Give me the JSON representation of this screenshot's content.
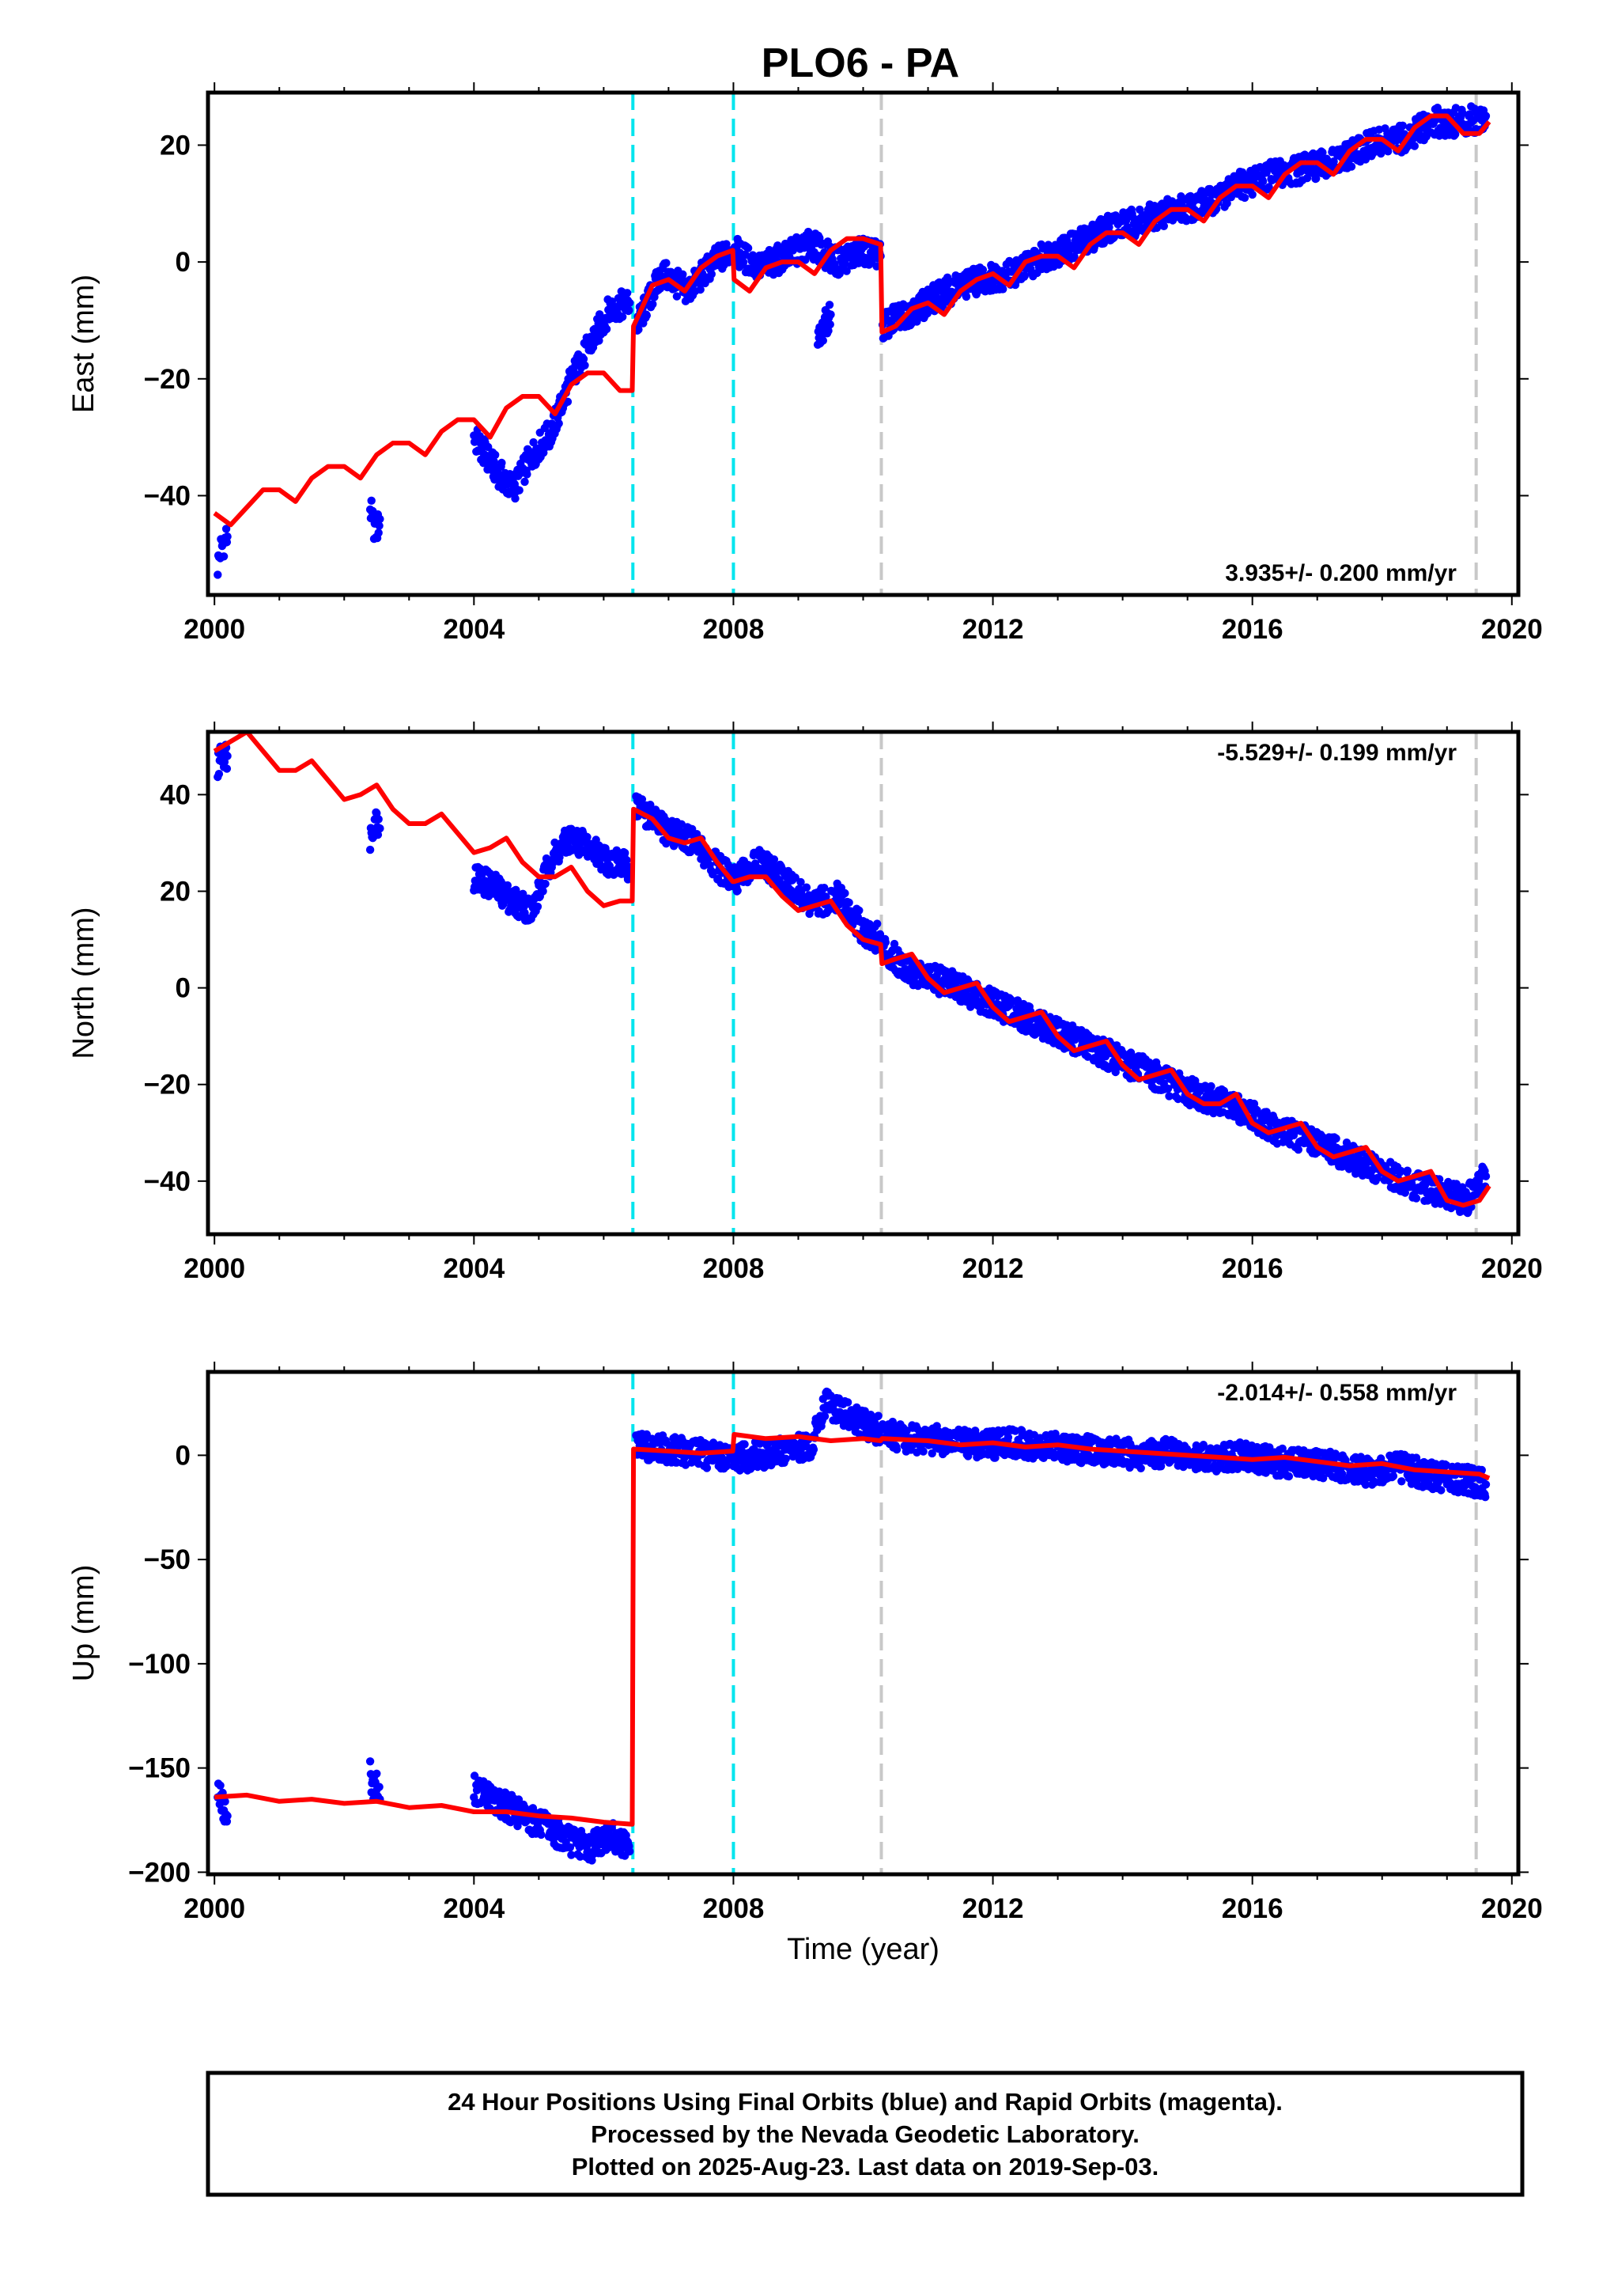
{
  "title": "PLO6 - PA",
  "colors": {
    "data": "#0000ff",
    "model": "#ff0000",
    "equipment_change": "#00e5ee",
    "other_change": "#c8c8c8"
  },
  "footer": {
    "line1": "24 Hour Positions Using Final Orbits (blue) and Rapid Orbits (magenta).",
    "line2": "Processed by the Nevada Geodetic Laboratory.",
    "line3": "Plotted on 2025-Aug-23. Last data on 2019-Sep-03."
  },
  "chart_data": [
    {
      "type": "scatter",
      "component": "East",
      "ylabel": "East (mm)",
      "xlabel": "",
      "xlim": [
        1999.9,
        2020.1
      ],
      "ylim": [
        -57,
        29
      ],
      "xticks": [
        2000,
        2004,
        2008,
        2012,
        2016,
        2020
      ],
      "yticks": [
        20,
        0,
        -20,
        -40
      ],
      "rate_label": "3.935+/- 0.200 mm/yr",
      "rate_position": "bottom-right",
      "offsets_cyan": [
        2006.45,
        2008.0
      ],
      "offsets_gray": [
        2010.28,
        2019.45
      ],
      "data_series": [
        {
          "x": [
            2000.05,
            2000.1,
            2000.2
          ],
          "y": [
            -52,
            -49,
            -47
          ]
        },
        {
          "x": [
            2002.4,
            2002.45,
            2002.5,
            2002.55
          ],
          "y": [
            -42,
            -45,
            -46,
            -44
          ]
        },
        {
          "x": [
            2004.0,
            2004.3,
            2004.6,
            2004.9,
            2005.2,
            2005.5,
            2005.8,
            2006.1,
            2006.4
          ],
          "y": [
            -30,
            -35,
            -39,
            -33,
            -29,
            -20,
            -14,
            -8,
            -7
          ]
        },
        {
          "x": [
            2006.5,
            2006.9,
            2007.3,
            2007.7,
            2008.0,
            2008.4,
            2008.8,
            2009.2,
            2009.6,
            2010.0,
            2010.27
          ],
          "y": [
            -11,
            -2,
            -5,
            0,
            2,
            -1,
            1,
            3,
            0,
            2,
            1
          ]
        },
        {
          "x": [
            2009.3,
            2009.4,
            2009.5
          ],
          "y": [
            -14,
            -11,
            -9
          ]
        },
        {
          "x": [
            2010.3,
            2010.8,
            2011.3,
            2011.8,
            2012.3,
            2012.8,
            2013.3,
            2013.8,
            2014.3,
            2014.8,
            2015.3,
            2015.8,
            2016.3,
            2016.8,
            2017.3,
            2017.8,
            2018.3,
            2018.8,
            2019.3,
            2019.6
          ],
          "y": [
            -11,
            -8,
            -5,
            -3,
            -2,
            1,
            3,
            6,
            7,
            9,
            10,
            13,
            15,
            16,
            17,
            20,
            21,
            24,
            24,
            25
          ]
        }
      ],
      "model_series": {
        "x": [
          2000.0,
          2000.25,
          2000.5,
          2000.75,
          2001.0,
          2001.25,
          2001.5,
          2001.75,
          2002.0,
          2002.25,
          2002.5,
          2002.75,
          2003.0,
          2003.25,
          2003.5,
          2003.75,
          2004.0,
          2004.25,
          2004.5,
          2004.75,
          2005.0,
          2005.25,
          2005.5,
          2005.75,
          2006.0,
          2006.25,
          2006.44,
          2006.46,
          2006.75,
          2007.0,
          2007.25,
          2007.5,
          2007.75,
          2007.99,
          2008.01,
          2008.25,
          2008.5,
          2008.75,
          2009.0,
          2009.25,
          2009.5,
          2009.75,
          2010.0,
          2010.27,
          2010.29,
          2010.5,
          2010.75,
          2011.0,
          2011.25,
          2011.5,
          2011.75,
          2012.0,
          2012.25,
          2012.5,
          2012.75,
          2013.0,
          2013.25,
          2013.5,
          2013.75,
          2014.0,
          2014.25,
          2014.5,
          2014.75,
          2015.0,
          2015.25,
          2015.5,
          2015.75,
          2016.0,
          2016.25,
          2016.5,
          2016.75,
          2017.0,
          2017.25,
          2017.5,
          2017.75,
          2018.0,
          2018.25,
          2018.5,
          2018.75,
          2019.0,
          2019.25,
          2019.5,
          2019.65
        ],
        "y": [
          -43,
          -45,
          -42,
          -39,
          -39,
          -41,
          -37,
          -35,
          -35,
          -37,
          -33,
          -31,
          -31,
          -33,
          -29,
          -27,
          -27,
          -30,
          -25,
          -23,
          -23,
          -26,
          -21,
          -19,
          -19,
          -22,
          -22,
          -11,
          -4,
          -3,
          -5,
          -1,
          1,
          2,
          -3,
          -5,
          -1,
          0,
          0,
          -2,
          2,
          4,
          4,
          3,
          -12,
          -11,
          -8,
          -7,
          -9,
          -5,
          -3,
          -2,
          -4,
          0,
          1,
          1,
          -1,
          3,
          5,
          5,
          3,
          7,
          9,
          9,
          7,
          11,
          13,
          13,
          11,
          15,
          17,
          17,
          15,
          19,
          21,
          21,
          19,
          23,
          25,
          25,
          22,
          22,
          24
        ]
      }
    },
    {
      "type": "scatter",
      "component": "North",
      "ylabel": "North (mm)",
      "xlabel": "",
      "xlim": [
        1999.9,
        2020.1
      ],
      "ylim": [
        -51,
        53
      ],
      "xticks": [
        2000,
        2004,
        2008,
        2012,
        2016,
        2020
      ],
      "yticks": [
        40,
        20,
        0,
        -20,
        -40
      ],
      "rate_label": "-5.529+/- 0.199 mm/yr",
      "rate_position": "top-right",
      "offsets_cyan": [
        2006.45,
        2008.0
      ],
      "offsets_gray": [
        2010.28,
        2019.45
      ],
      "data_series": [
        {
          "x": [
            2000.05,
            2000.1,
            2000.2
          ],
          "y": [
            45,
            49,
            48
          ]
        },
        {
          "x": [
            2002.4,
            2002.45,
            2002.5,
            2002.55
          ],
          "y": [
            31,
            34,
            35,
            33
          ]
        },
        {
          "x": [
            2004.0,
            2004.3,
            2004.6,
            2004.9,
            2005.2,
            2005.5,
            2005.8,
            2006.1,
            2006.4
          ],
          "y": [
            23,
            21,
            18,
            16,
            27,
            31,
            29,
            26,
            25
          ]
        },
        {
          "x": [
            2006.5,
            2006.9,
            2007.3,
            2007.7,
            2008.0,
            2008.4,
            2008.8,
            2009.2,
            2009.6,
            2010.0,
            2010.27
          ],
          "y": [
            38,
            33,
            31,
            26,
            22,
            26,
            22,
            17,
            19,
            12,
            10
          ]
        },
        {
          "x": [
            2010.3,
            2010.8,
            2011.3,
            2011.8,
            2012.3,
            2012.8,
            2013.3,
            2013.8,
            2014.3,
            2014.8,
            2015.3,
            2015.8,
            2016.3,
            2016.8,
            2017.3,
            2017.8,
            2018.3,
            2018.8,
            2019.3,
            2019.6
          ],
          "y": [
            8,
            3,
            1,
            -2,
            -5,
            -8,
            -11,
            -14,
            -17,
            -20,
            -23,
            -25,
            -29,
            -31,
            -34,
            -37,
            -40,
            -42,
            -44,
            -39
          ]
        }
      ],
      "model_series": {
        "x": [
          2000.0,
          2000.25,
          2000.5,
          2000.75,
          2001.0,
          2001.25,
          2001.5,
          2001.75,
          2002.0,
          2002.25,
          2002.5,
          2002.75,
          2003.0,
          2003.25,
          2003.5,
          2003.75,
          2004.0,
          2004.25,
          2004.5,
          2004.75,
          2005.0,
          2005.25,
          2005.5,
          2005.75,
          2006.0,
          2006.25,
          2006.44,
          2006.46,
          2006.75,
          2007.0,
          2007.25,
          2007.5,
          2007.75,
          2007.99,
          2008.01,
          2008.25,
          2008.5,
          2008.75,
          2009.0,
          2009.25,
          2009.5,
          2009.75,
          2010.0,
          2010.27,
          2010.29,
          2010.5,
          2010.75,
          2011.0,
          2011.25,
          2011.5,
          2011.75,
          2012.0,
          2012.25,
          2012.5,
          2012.75,
          2013.0,
          2013.25,
          2013.5,
          2013.75,
          2014.0,
          2014.25,
          2014.5,
          2014.75,
          2015.0,
          2015.25,
          2015.5,
          2015.75,
          2016.0,
          2016.25,
          2016.5,
          2016.75,
          2017.0,
          2017.25,
          2017.5,
          2017.75,
          2018.0,
          2018.25,
          2018.5,
          2018.75,
          2019.0,
          2019.25,
          2019.5,
          2019.65
        ],
        "y": [
          49,
          51,
          53,
          49,
          45,
          45,
          47,
          43,
          39,
          40,
          42,
          37,
          34,
          34,
          36,
          32,
          28,
          29,
          31,
          26,
          23,
          23,
          25,
          20,
          17,
          18,
          18,
          37,
          35,
          31,
          30,
          31,
          26,
          22,
          22,
          23,
          23,
          19,
          16,
          17,
          18,
          13,
          10,
          9,
          5,
          6,
          7,
          2,
          -1,
          0,
          1,
          -4,
          -7,
          -6,
          -5,
          -10,
          -13,
          -12,
          -11,
          -16,
          -19,
          -18,
          -17,
          -22,
          -24,
          -24,
          -22,
          -28,
          -30,
          -29,
          -28,
          -33,
          -35,
          -34,
          -33,
          -38,
          -40,
          -39,
          -38,
          -44,
          -45,
          -44,
          -41
        ]
      }
    },
    {
      "type": "scatter",
      "component": "Up",
      "ylabel": "Up (mm)",
      "xlabel": "Time (year)",
      "xlim": [
        1999.9,
        2020.1
      ],
      "ylim": [
        -201,
        40
      ],
      "xticks": [
        2000,
        2004,
        2008,
        2012,
        2016,
        2020
      ],
      "yticks": [
        0,
        -50,
        -100,
        -150,
        -200
      ],
      "rate_label": "-2.014+/- 0.558 mm/yr",
      "rate_position": "top-right",
      "offsets_cyan": [
        2006.45,
        2008.0
      ],
      "offsets_gray": [
        2010.28,
        2019.45
      ],
      "data_series": [
        {
          "x": [
            2000.05,
            2000.1,
            2000.2
          ],
          "y": [
            -158,
            -166,
            -173
          ]
        },
        {
          "x": [
            2002.4,
            2002.45,
            2002.5,
            2002.55
          ],
          "y": [
            -152,
            -160,
            -158,
            -165
          ]
        },
        {
          "x": [
            2004.0,
            2004.3,
            2004.6,
            2004.9,
            2005.2,
            2005.5,
            2005.8,
            2006.1,
            2006.4
          ],
          "y": [
            -160,
            -165,
            -170,
            -175,
            -180,
            -185,
            -188,
            -182,
            -190
          ]
        },
        {
          "x": [
            2006.5,
            2006.9,
            2007.3,
            2007.7,
            2008.0,
            2008.4,
            2008.8,
            2009.2,
            2009.4,
            2009.6,
            2010.0,
            2010.27
          ],
          "y": [
            5,
            3,
            2,
            0,
            -2,
            0,
            2,
            4,
            25,
            22,
            15,
            12
          ]
        },
        {
          "x": [
            2010.3,
            2010.8,
            2011.3,
            2011.8,
            2012.3,
            2012.8,
            2013.3,
            2013.8,
            2014.3,
            2014.8,
            2015.3,
            2015.8,
            2016.3,
            2016.8,
            2017.3,
            2017.8,
            2018.3,
            2018.8,
            2019.3,
            2019.6
          ],
          "y": [
            10,
            8,
            7,
            5,
            6,
            4,
            3,
            2,
            0,
            2,
            -2,
            0,
            -3,
            -4,
            -5,
            -8,
            -6,
            -10,
            -12,
            -14
          ]
        }
      ],
      "model_series": {
        "x": [
          2000.0,
          2000.5,
          2001.0,
          2001.5,
          2002.0,
          2002.5,
          2003.0,
          2003.5,
          2004.0,
          2004.5,
          2005.0,
          2005.5,
          2006.0,
          2006.44,
          2006.46,
          2007.0,
          2007.5,
          2007.99,
          2008.01,
          2008.5,
          2009.0,
          2009.5,
          2010.0,
          2010.27,
          2010.29,
          2011.0,
          2011.5,
          2012.0,
          2012.5,
          2013.0,
          2013.5,
          2014.0,
          2014.5,
          2015.0,
          2015.5,
          2016.0,
          2016.5,
          2017.0,
          2017.5,
          2018.0,
          2018.5,
          2019.0,
          2019.5,
          2019.65
        ],
        "y": [
          -164,
          -163,
          -166,
          -165,
          -167,
          -166,
          -169,
          -168,
          -171,
          -171,
          -173,
          -174,
          -176,
          -177,
          3,
          2,
          1,
          2,
          10,
          8,
          9,
          7,
          8,
          7,
          8,
          7,
          5,
          6,
          4,
          5,
          3,
          2,
          1,
          0,
          -1,
          -2,
          -1,
          -3,
          -5,
          -4,
          -7,
          -8,
          -9,
          -11
        ]
      }
    }
  ]
}
